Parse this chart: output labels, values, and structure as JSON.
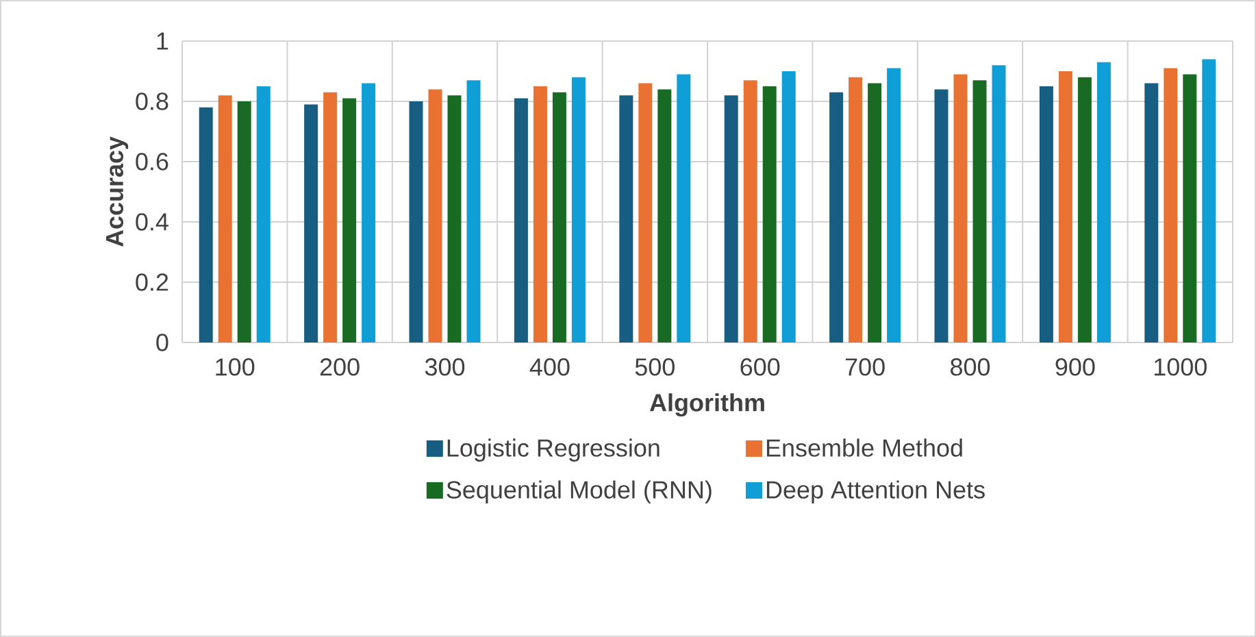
{
  "chart_data": {
    "type": "bar",
    "xlabel": "Algorithm",
    "ylabel": "Accuracy",
    "categories": [
      "100",
      "200",
      "300",
      "400",
      "500",
      "600",
      "700",
      "800",
      "900",
      "1000"
    ],
    "series": [
      {
        "name": "Logistic Regression",
        "color": "#175e82",
        "values": [
          0.78,
          0.79,
          0.8,
          0.81,
          0.82,
          0.82,
          0.83,
          0.84,
          0.85,
          0.86
        ]
      },
      {
        "name": "Ensemble Method",
        "color": "#e97132",
        "values": [
          0.82,
          0.83,
          0.84,
          0.85,
          0.86,
          0.87,
          0.88,
          0.89,
          0.9,
          0.91
        ]
      },
      {
        "name": "Sequential Model (RNN)",
        "color": "#196b24",
        "values": [
          0.8,
          0.81,
          0.82,
          0.83,
          0.84,
          0.85,
          0.86,
          0.87,
          0.88,
          0.89
        ]
      },
      {
        "name": "Deep Attention Nets",
        "color": "#0f9ed5",
        "values": [
          0.85,
          0.86,
          0.87,
          0.88,
          0.89,
          0.9,
          0.91,
          0.92,
          0.93,
          0.94
        ]
      }
    ],
    "ylim": [
      0,
      1
    ],
    "yticks": [
      0,
      0.2,
      0.4,
      0.6,
      0.8,
      1
    ],
    "grid": true,
    "legend": "bottom"
  }
}
